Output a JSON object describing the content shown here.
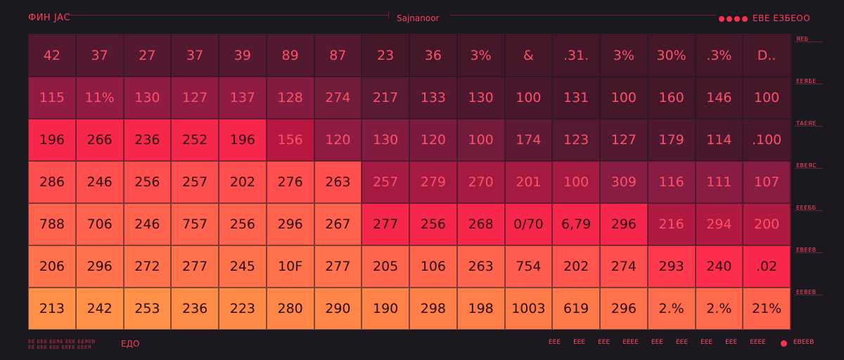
{
  "header": {
    "title": "ФИН ЈАС",
    "center_label": "Sajnanoor",
    "right_label": "ЕВЕ ЕЗБЕОО"
  },
  "legend": {
    "items": [
      "ЯЕБ",
      "ЕЕЯБЕ",
      "ТАЕЯЕ",
      "ЕВЕЯС",
      "ЕЕЕББ",
      "ЕВЕЕВ",
      "ЕЕВЕВ"
    ]
  },
  "footer": {
    "left_lines": [
      "ЕЕ ЕЕЕ ЕЕЯЕ ЕЕЕ ЕЕЯЕВ",
      "ЕЕ ЕЕЕ ЕЕЕ ЕЕЕЕ ЕЕЕЯ"
    ],
    "left_mark": "ЕДО",
    "ticks": [
      "ЕЕЕ",
      "ЕЕЕ",
      "ЕЕЕ",
      "ЕЕЕЕ",
      "ЕЕЕ",
      "ЕЕЕ",
      "ЕЕЕ",
      "ЕЕЕ",
      "ЕЕЕЕ"
    ],
    "right_label": "ЕВЕЕВ"
  },
  "colors": {
    "background": "#1b1820",
    "accent": "#ff2f4e",
    "scale": [
      "#3b1524",
      "#561a32",
      "#8a1c43",
      "#c4173f",
      "#ff2a4d",
      "#ff5a4e",
      "#ff7b4a",
      "#ff9c45"
    ]
  },
  "chart_data": {
    "type": "heatmap",
    "columns": 16,
    "rows": 7,
    "cells": [
      [
        {
          "label": "42",
          "level": 0.12
        },
        {
          "label": "37",
          "level": 0.12
        },
        {
          "label": "27",
          "level": 0.12
        },
        {
          "label": "37",
          "level": 0.12
        },
        {
          "label": "39",
          "level": 0.12
        },
        {
          "label": "89",
          "level": 0.12
        },
        {
          "label": "87",
          "level": 0.12
        },
        {
          "label": "23",
          "level": 0.05
        },
        {
          "label": "36",
          "level": 0.05
        },
        {
          "label": "3%",
          "level": 0.05
        },
        {
          "label": "&",
          "level": 0.05
        },
        {
          "label": ".31.",
          "level": 0.05
        },
        {
          "label": "3%",
          "level": 0.05
        },
        {
          "label": "30%",
          "level": 0.05
        },
        {
          "label": ".3%",
          "level": 0.05
        },
        {
          "label": "D..",
          "level": 0.05
        }
      ],
      [
        {
          "label": "115",
          "level": 0.3
        },
        {
          "label": "11%",
          "level": 0.3
        },
        {
          "label": "130",
          "level": 0.3
        },
        {
          "label": "127",
          "level": 0.3
        },
        {
          "label": "137",
          "level": 0.3
        },
        {
          "label": "128",
          "level": 0.27
        },
        {
          "label": "274",
          "level": 0.22
        },
        {
          "label": "217",
          "level": 0.15
        },
        {
          "label": "133",
          "level": 0.12
        },
        {
          "label": "130",
          "level": 0.1
        },
        {
          "label": "100",
          "level": 0.07
        },
        {
          "label": "131",
          "level": 0.06
        },
        {
          "label": "100",
          "level": 0.05
        },
        {
          "label": "160",
          "level": 0.05
        },
        {
          "label": "146",
          "level": 0.05
        },
        {
          "label": "100",
          "level": 0.05
        }
      ],
      [
        {
          "label": "196",
          "level": 0.55
        },
        {
          "label": "266",
          "level": 0.55
        },
        {
          "label": "236",
          "level": 0.55
        },
        {
          "label": "252",
          "level": 0.55
        },
        {
          "label": "196",
          "level": 0.55
        },
        {
          "label": "156",
          "level": 0.4
        },
        {
          "label": "120",
          "level": 0.3
        },
        {
          "label": "130",
          "level": 0.26
        },
        {
          "label": "120",
          "level": 0.24
        },
        {
          "label": "100",
          "level": 0.22
        },
        {
          "label": "174",
          "level": 0.16
        },
        {
          "label": "123",
          "level": 0.14
        },
        {
          "label": "127",
          "level": 0.12
        },
        {
          "label": "179",
          "level": 0.1
        },
        {
          "label": "114",
          "level": 0.08
        },
        {
          "label": ".100",
          "level": 0.07
        }
      ],
      [
        {
          "label": "286",
          "level": 0.68
        },
        {
          "label": "246",
          "level": 0.68
        },
        {
          "label": "256",
          "level": 0.68
        },
        {
          "label": "257",
          "level": 0.68
        },
        {
          "label": "202",
          "level": 0.68
        },
        {
          "label": "276",
          "level": 0.68
        },
        {
          "label": "263",
          "level": 0.68
        },
        {
          "label": "257",
          "level": 0.35
        },
        {
          "label": "279",
          "level": 0.35
        },
        {
          "label": "270",
          "level": 0.35
        },
        {
          "label": "201",
          "level": 0.35
        },
        {
          "label": "100",
          "level": 0.35
        },
        {
          "label": "309",
          "level": 0.28
        },
        {
          "label": "116",
          "level": 0.28
        },
        {
          "label": "111",
          "level": 0.28
        },
        {
          "label": "107",
          "level": 0.28
        }
      ],
      [
        {
          "label": "788",
          "level": 0.75
        },
        {
          "label": "706",
          "level": 0.75
        },
        {
          "label": "246",
          "level": 0.75
        },
        {
          "label": "757",
          "level": 0.75
        },
        {
          "label": "256",
          "level": 0.75
        },
        {
          "label": "296",
          "level": 0.75
        },
        {
          "label": "267",
          "level": 0.75
        },
        {
          "label": "277",
          "level": 0.55
        },
        {
          "label": "256",
          "level": 0.55
        },
        {
          "label": "268",
          "level": 0.55
        },
        {
          "label": "0/70",
          "level": 0.55
        },
        {
          "label": "6,79",
          "level": 0.55
        },
        {
          "label": "296",
          "level": 0.55
        },
        {
          "label": "216",
          "level": 0.38
        },
        {
          "label": "294",
          "level": 0.38
        },
        {
          "label": "200",
          "level": 0.38
        }
      ],
      [
        {
          "label": "206",
          "level": 0.82
        },
        {
          "label": "296",
          "level": 0.82
        },
        {
          "label": "272",
          "level": 0.82
        },
        {
          "label": "277",
          "level": 0.82
        },
        {
          "label": "245",
          "level": 0.82
        },
        {
          "label": "10F",
          "level": 0.82
        },
        {
          "label": "277",
          "level": 0.82
        },
        {
          "label": "205",
          "level": 0.76
        },
        {
          "label": "106",
          "level": 0.76
        },
        {
          "label": "263",
          "level": 0.76
        },
        {
          "label": "754",
          "level": 0.72
        },
        {
          "label": "202",
          "level": 0.7
        },
        {
          "label": "274",
          "level": 0.68
        },
        {
          "label": "293",
          "level": 0.62
        },
        {
          "label": "240",
          "level": 0.58
        },
        {
          "label": ".02",
          "level": 0.56
        }
      ],
      [
        {
          "label": "213",
          "level": 0.95
        },
        {
          "label": "242",
          "level": 0.95
        },
        {
          "label": "253",
          "level": 0.95
        },
        {
          "label": "236",
          "level": 0.93
        },
        {
          "label": "223",
          "level": 0.92
        },
        {
          "label": "280",
          "level": 0.91
        },
        {
          "label": "290",
          "level": 0.9
        },
        {
          "label": "190",
          "level": 0.89
        },
        {
          "label": "298",
          "level": 0.88
        },
        {
          "label": "198",
          "level": 0.87
        },
        {
          "label": "1003",
          "level": 0.86
        },
        {
          "label": "619",
          "level": 0.85
        },
        {
          "label": "296",
          "level": 0.82
        },
        {
          "label": "2.%",
          "level": 0.8
        },
        {
          "label": "2.%",
          "level": 0.78
        },
        {
          "label": "21%",
          "level": 0.76
        }
      ]
    ]
  }
}
